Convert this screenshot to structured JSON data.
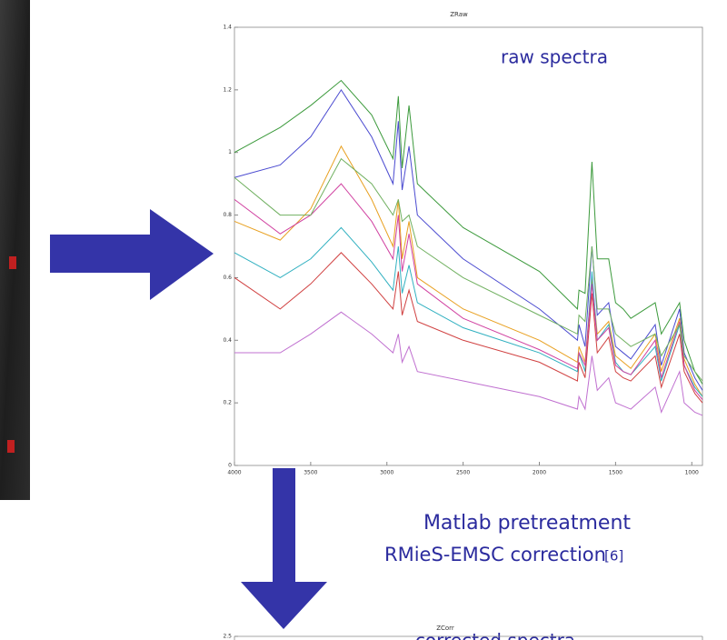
{
  "chart_data": [
    {
      "type": "line",
      "title": "ZRaw",
      "annotation": "raw spectra",
      "x": [
        4000,
        3700,
        3500,
        3300,
        3100,
        2960,
        2925,
        2900,
        2855,
        2800,
        2500,
        2000,
        1750,
        1740,
        1700,
        1655,
        1620,
        1545,
        1500,
        1450,
        1400,
        1240,
        1200,
        1080,
        1050,
        980,
        930
      ],
      "series": [
        {
          "color": "#3c9a3c",
          "values": [
            1.0,
            1.08,
            1.15,
            1.23,
            1.12,
            0.98,
            1.18,
            0.95,
            1.15,
            0.9,
            0.76,
            0.62,
            0.5,
            0.56,
            0.55,
            0.97,
            0.66,
            0.66,
            0.52,
            0.5,
            0.47,
            0.52,
            0.42,
            0.52,
            0.4,
            0.3,
            0.26
          ]
        },
        {
          "color": "#4a4ad0",
          "values": [
            0.92,
            0.96,
            1.05,
            1.2,
            1.05,
            0.9,
            1.1,
            0.88,
            1.02,
            0.8,
            0.66,
            0.5,
            0.4,
            0.45,
            0.38,
            0.7,
            0.48,
            0.52,
            0.38,
            0.36,
            0.34,
            0.45,
            0.32,
            0.5,
            0.36,
            0.28,
            0.24
          ]
        },
        {
          "color": "#e8a020",
          "values": [
            0.78,
            0.72,
            0.82,
            1.02,
            0.85,
            0.7,
            0.85,
            0.66,
            0.78,
            0.6,
            0.5,
            0.4,
            0.33,
            0.38,
            0.33,
            0.6,
            0.42,
            0.46,
            0.35,
            0.33,
            0.31,
            0.42,
            0.3,
            0.47,
            0.34,
            0.26,
            0.22
          ]
        },
        {
          "color": "#30b0c0",
          "values": [
            0.68,
            0.6,
            0.66,
            0.76,
            0.65,
            0.56,
            0.7,
            0.55,
            0.64,
            0.52,
            0.44,
            0.36,
            0.3,
            0.36,
            0.3,
            0.62,
            0.4,
            0.45,
            0.33,
            0.3,
            0.29,
            0.38,
            0.27,
            0.45,
            0.32,
            0.25,
            0.22
          ]
        },
        {
          "color": "#d04040",
          "values": [
            0.6,
            0.5,
            0.58,
            0.68,
            0.58,
            0.5,
            0.62,
            0.48,
            0.56,
            0.46,
            0.4,
            0.33,
            0.27,
            0.33,
            0.28,
            0.55,
            0.36,
            0.41,
            0.3,
            0.28,
            0.27,
            0.35,
            0.25,
            0.42,
            0.3,
            0.23,
            0.2
          ]
        },
        {
          "color": "#c070d0",
          "values": [
            0.36,
            0.36,
            0.42,
            0.49,
            0.42,
            0.36,
            0.42,
            0.33,
            0.38,
            0.3,
            0.27,
            0.22,
            0.18,
            0.22,
            0.18,
            0.35,
            0.24,
            0.28,
            0.2,
            0.19,
            0.18,
            0.25,
            0.17,
            0.3,
            0.2,
            0.17,
            0.16
          ]
        },
        {
          "color": "#d040a0",
          "values": [
            0.85,
            0.74,
            0.8,
            0.9,
            0.78,
            0.66,
            0.8,
            0.62,
            0.74,
            0.58,
            0.47,
            0.37,
            0.31,
            0.36,
            0.32,
            0.58,
            0.4,
            0.44,
            0.32,
            0.3,
            0.29,
            0.4,
            0.28,
            0.46,
            0.32,
            0.24,
            0.21
          ]
        },
        {
          "color": "#70b060",
          "values": [
            0.92,
            0.8,
            0.8,
            0.98,
            0.9,
            0.8,
            0.85,
            0.78,
            0.8,
            0.7,
            0.6,
            0.48,
            0.42,
            0.48,
            0.46,
            0.7,
            0.5,
            0.5,
            0.42,
            0.4,
            0.38,
            0.42,
            0.35,
            0.45,
            0.35,
            0.3,
            0.27
          ]
        }
      ],
      "xlim": [
        4000,
        930
      ],
      "ylim": [
        0,
        1.4
      ],
      "xticks": [
        4000,
        3500,
        3000,
        2500,
        2000,
        1500,
        1000
      ],
      "yticks": [
        0,
        0.2,
        0.4,
        0.6,
        0.8,
        1,
        1.2,
        1.4
      ]
    },
    {
      "type": "line",
      "title": "ZCorr",
      "annotation": "corrected spectra",
      "yticks": [
        2.5
      ]
    }
  ],
  "labels": {
    "method": "Matlab pretreatment",
    "correction": "RMieS-EMSC correction",
    "reference": "[6]"
  }
}
